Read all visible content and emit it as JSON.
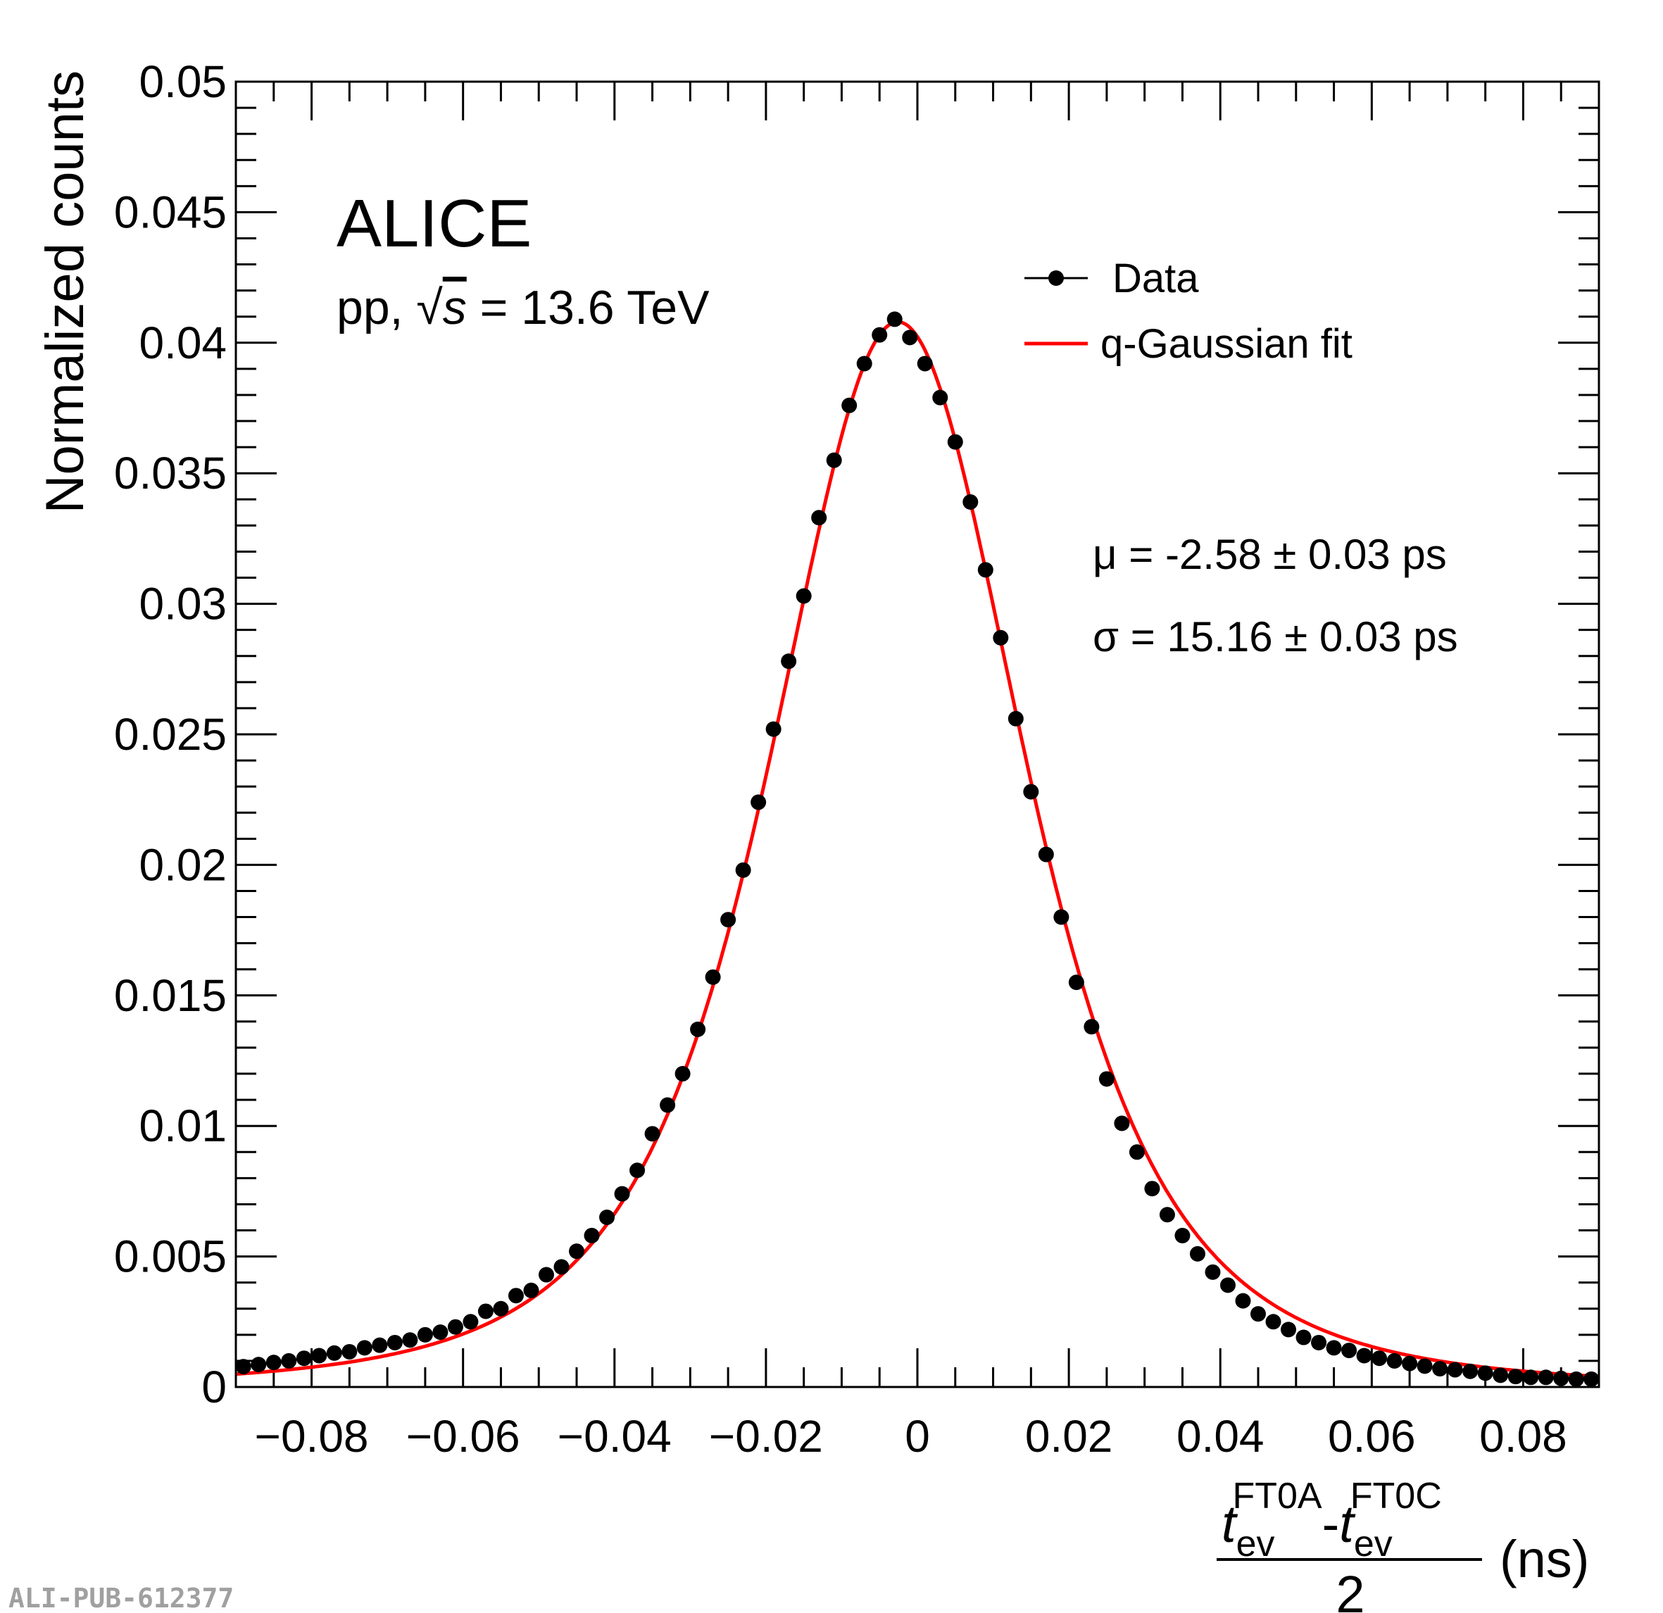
{
  "chart_data": {
    "type": "scatter",
    "title": "",
    "xlabel": {
      "numerator_t1": "t",
      "numerator_sub1": "ev",
      "numerator_sup1": "FT0A",
      "dash": "-",
      "numerator_t2": "t",
      "numerator_sub2": "ev",
      "numerator_sup2": "FT0C",
      "denominator": "2",
      "unit": "(ns)"
    },
    "ylabel": "Normalized counts",
    "xlim": [
      -0.09,
      0.09
    ],
    "ylim": [
      0,
      0.05
    ],
    "x_ticks": [
      "−0.08",
      "−0.06",
      "−0.04",
      "−0.02",
      "0",
      "0.02",
      "0.04",
      "0.06",
      "0.08"
    ],
    "x_tick_values": [
      -0.08,
      -0.06,
      -0.04,
      -0.02,
      0,
      0.02,
      0.04,
      0.06,
      0.08
    ],
    "y_ticks": [
      "0",
      "0.005",
      "0.01",
      "0.015",
      "0.02",
      "0.025",
      "0.03",
      "0.035",
      "0.04",
      "0.045",
      "0.05"
    ],
    "y_tick_values": [
      0,
      0.005,
      0.01,
      0.015,
      0.02,
      0.025,
      0.03,
      0.035,
      0.04,
      0.045,
      0.05
    ],
    "grid": false,
    "legend_position": "top-right",
    "series": [
      {
        "name": "Data",
        "style": "markers",
        "color": "#000000",
        "x_start": -0.089,
        "x_step": 0.002,
        "values": [
          0.00078,
          0.00086,
          0.00094,
          0.001,
          0.0011,
          0.0012,
          0.0013,
          0.00135,
          0.0015,
          0.0016,
          0.0017,
          0.0018,
          0.002,
          0.0021,
          0.0023,
          0.0025,
          0.0029,
          0.003,
          0.0035,
          0.0037,
          0.0043,
          0.0046,
          0.0052,
          0.0058,
          0.0065,
          0.0074,
          0.0083,
          0.0097,
          0.0108,
          0.012,
          0.0137,
          0.0157,
          0.0179,
          0.0198,
          0.0224,
          0.0252,
          0.0278,
          0.0303,
          0.0333,
          0.0355,
          0.0376,
          0.0392,
          0.0403,
          0.0409,
          0.0402,
          0.0392,
          0.0379,
          0.0362,
          0.0339,
          0.0313,
          0.0287,
          0.0256,
          0.0228,
          0.0204,
          0.018,
          0.0155,
          0.0138,
          0.0118,
          0.0101,
          0.009,
          0.0076,
          0.0066,
          0.0058,
          0.0051,
          0.0044,
          0.0039,
          0.0033,
          0.0028,
          0.0025,
          0.0022,
          0.0019,
          0.0017,
          0.0015,
          0.0014,
          0.0012,
          0.0011,
          0.001,
          0.0009,
          0.0008,
          0.0007,
          0.00066,
          0.0006,
          0.00053,
          0.00045,
          0.0004,
          0.00037,
          0.00037,
          0.00033,
          0.0003,
          0.0003
        ]
      },
      {
        "name": "q-Gaussian fit",
        "style": "line",
        "color": "#ff0000",
        "model": {
          "amplitude": 0.0408,
          "mu": -0.00258,
          "q": 1.5,
          "beta": 2112
        }
      }
    ],
    "annotations": {
      "experiment": "ALICE",
      "system_prefix": "pp, ",
      "sqrt": "√",
      "s": "s",
      "energy": " = 13.6 TeV",
      "mu_line": "μ = -2.58 ± 0.03 ps",
      "sigma_line": "σ = 15.16 ± 0.03 ps"
    },
    "legend": [
      "Data",
      "q-Gaussian fit"
    ]
  },
  "footer_id": "ALI-PUB-612377"
}
